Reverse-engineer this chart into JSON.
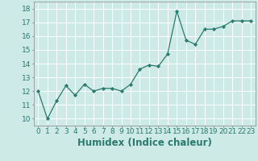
{
  "x": [
    0,
    1,
    2,
    3,
    4,
    5,
    6,
    7,
    8,
    9,
    10,
    11,
    12,
    13,
    14,
    15,
    16,
    17,
    18,
    19,
    20,
    21,
    22,
    23
  ],
  "y": [
    12.0,
    10.0,
    11.3,
    12.4,
    11.7,
    12.5,
    12.0,
    12.2,
    12.2,
    12.0,
    12.5,
    13.6,
    13.9,
    13.8,
    14.7,
    17.8,
    15.7,
    15.4,
    16.5,
    16.5,
    16.7,
    17.1,
    17.1,
    17.1
  ],
  "line_color": "#2a7a6e",
  "marker": "D",
  "marker_size": 2.2,
  "bg_color": "#ceeae7",
  "grid_color": "#ffffff",
  "xlabel": "Humidex (Indice chaleur)",
  "xlim": [
    -0.5,
    23.5
  ],
  "ylim": [
    9.5,
    18.5
  ],
  "xticks": [
    0,
    1,
    2,
    3,
    4,
    5,
    6,
    7,
    8,
    9,
    10,
    11,
    12,
    13,
    14,
    15,
    16,
    17,
    18,
    19,
    20,
    21,
    22,
    23
  ],
  "yticks": [
    10,
    11,
    12,
    13,
    14,
    15,
    16,
    17,
    18
  ],
  "tick_fontsize": 6.5,
  "xlabel_fontsize": 8.5,
  "linewidth": 0.9
}
